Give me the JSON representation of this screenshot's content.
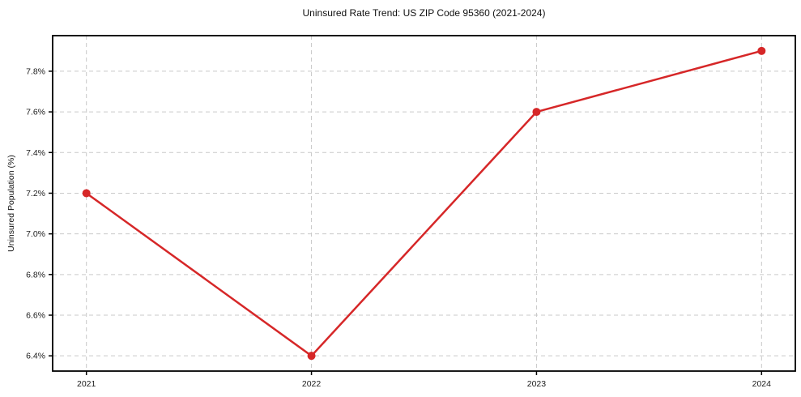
{
  "chart_data": {
    "type": "line",
    "title": "Uninsured Rate Trend: US ZIP Code 95360 (2021-2024)",
    "xlabel": "",
    "ylabel": "Uninsured Population (%)",
    "x": [
      2021,
      2022,
      2023,
      2024
    ],
    "x_tick_labels": [
      "2021",
      "2022",
      "2023",
      "2024"
    ],
    "values": [
      7.2,
      6.4,
      7.6,
      7.9
    ],
    "y_tick_values": [
      6.4,
      6.6,
      6.8,
      7.0,
      7.2,
      7.4,
      7.6,
      7.8
    ],
    "y_tick_labels": [
      "6.4%",
      "6.6%",
      "6.8%",
      "7.0%",
      "7.2%",
      "7.4%",
      "7.6%",
      "7.8%"
    ],
    "xlim": [
      2020.85,
      2024.15
    ],
    "ylim": [
      6.325,
      7.975
    ],
    "grid": true,
    "legend": "none",
    "colors": {
      "line": "#d62728",
      "marker": "#d62728",
      "grid": "#c9c9c9",
      "spine": "#000000",
      "text": "#1a1a1a",
      "background": "#ffffff"
    }
  }
}
